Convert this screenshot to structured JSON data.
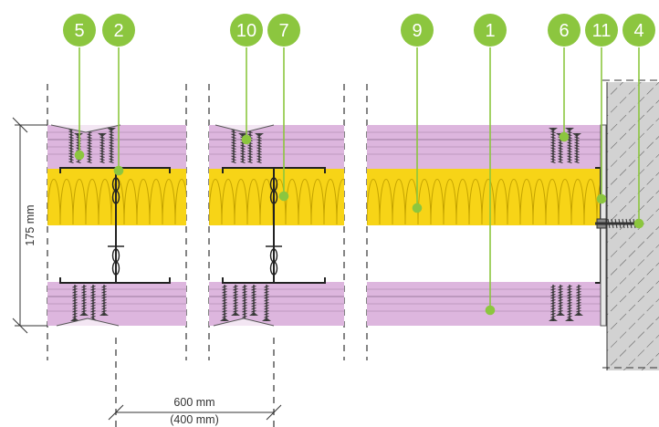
{
  "colors": {
    "board": "#ddb6de",
    "board_line": "#b58fb6",
    "insulation": "#f7d417",
    "insulation_line": "#c4a300",
    "steel": "#222222",
    "badge": "#8cc63f",
    "wall": "#d2d2d2",
    "hatch": "#444444"
  },
  "callouts": [
    "5",
    "2",
    "10",
    "7",
    "9",
    "1",
    "6",
    "11",
    "4"
  ],
  "dimensions": {
    "thickness": "175 mm",
    "spacing": "600 mm",
    "spacing_alt": "(400 mm)"
  }
}
